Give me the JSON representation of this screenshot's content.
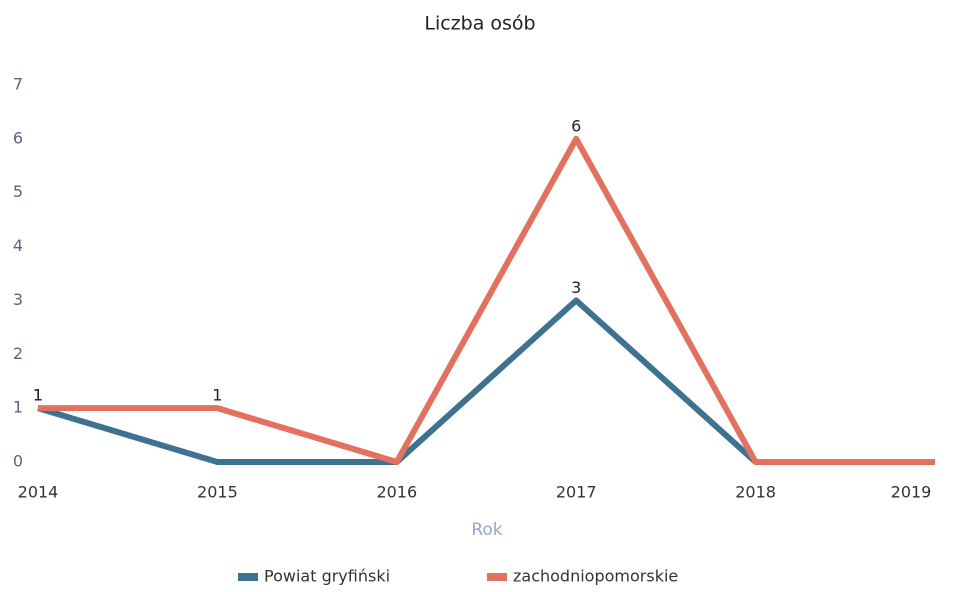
{
  "chart_data": {
    "type": "line",
    "title": "Liczba osób",
    "x_label": "Rok",
    "categories": [
      "2014",
      "2015",
      "2016",
      "2017",
      "2018",
      "2019"
    ],
    "series": [
      {
        "name": "Powiat gryfiński",
        "color": "#3d7391",
        "values": [
          1,
          0,
          0,
          3,
          0,
          null
        ]
      },
      {
        "name": "zachodniopomorskie",
        "color": "#e2725f",
        "values": [
          1,
          1,
          0,
          6,
          0,
          0
        ]
      }
    ],
    "ylim": [
      0,
      7
    ],
    "yticks": [
      0,
      1,
      2,
      3,
      4,
      5,
      6,
      7
    ],
    "grid": false,
    "legend": "bottom"
  }
}
